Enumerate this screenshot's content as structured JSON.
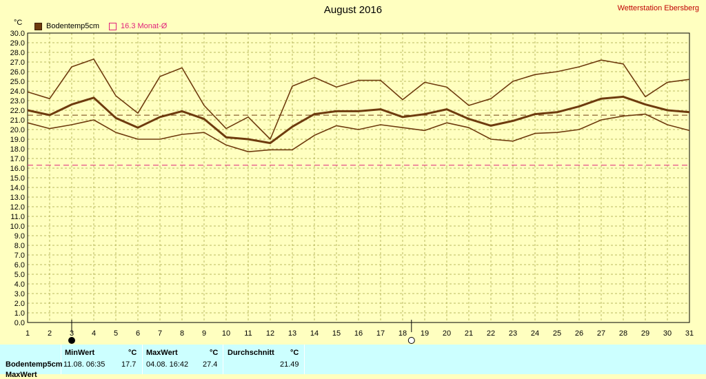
{
  "title": "August 2016",
  "station": "Wetterstation Ebersberg",
  "legend": {
    "series": "Bodentemp5cm",
    "avg": "16.3 Monat-Ø"
  },
  "colors": {
    "series": "#6e3b0e",
    "avg": "#e0207a",
    "grid": "#b8b860",
    "background": "#ffffc0"
  },
  "chart_data": {
    "type": "line",
    "ylabel": "°C",
    "ylim": [
      0,
      30
    ],
    "yticks": [
      "0.0",
      "1.0",
      "2.0",
      "3.0",
      "4.0",
      "5.0",
      "6.0",
      "7.0",
      "8.0",
      "9.0",
      "10.0",
      "11.0",
      "12.0",
      "13.0",
      "14.0",
      "15.0",
      "16.0",
      "17.0",
      "18.0",
      "19.0",
      "20.0",
      "21.0",
      "22.0",
      "23.0",
      "24.0",
      "25.0",
      "26.0",
      "27.0",
      "28.0",
      "29.0",
      "30.0"
    ],
    "x": [
      1,
      2,
      3,
      4,
      5,
      6,
      7,
      8,
      9,
      10,
      11,
      12,
      13,
      14,
      15,
      16,
      17,
      18,
      19,
      20,
      21,
      22,
      23,
      24,
      25,
      26,
      27,
      28,
      29,
      30,
      31
    ],
    "series": [
      {
        "name": "Bodentemp5cm",
        "role": "max",
        "values": [
          23.9,
          23.2,
          26.5,
          27.3,
          23.5,
          21.7,
          25.5,
          26.4,
          22.5,
          20.1,
          21.3,
          19.0,
          24.5,
          25.4,
          24.4,
          25.1,
          25.1,
          23.1,
          24.9,
          24.4,
          22.5,
          23.2,
          25.0,
          25.7,
          26.0,
          26.5,
          27.2,
          26.8,
          23.4,
          24.9,
          25.2
        ]
      },
      {
        "name": "Bodentemp5cm",
        "role": "mean",
        "values": [
          22.0,
          21.5,
          22.6,
          23.3,
          21.2,
          20.2,
          21.3,
          21.9,
          21.1,
          19.2,
          19.0,
          18.6,
          20.3,
          21.6,
          21.9,
          21.9,
          22.1,
          21.3,
          21.6,
          22.1,
          21.1,
          20.4,
          20.9,
          21.6,
          21.8,
          22.4,
          23.2,
          23.4,
          22.6,
          22.0,
          21.8
        ]
      },
      {
        "name": "Bodentemp5cm",
        "role": "min",
        "values": [
          20.7,
          20.1,
          20.5,
          21.0,
          19.7,
          19.0,
          19.0,
          19.5,
          19.7,
          18.4,
          17.7,
          17.9,
          17.9,
          19.4,
          20.4,
          20.0,
          20.5,
          20.2,
          19.9,
          20.7,
          20.2,
          19.0,
          18.8,
          19.6,
          19.7,
          20.0,
          21.0,
          21.4,
          21.6,
          20.5,
          19.9
        ]
      }
    ],
    "reference_lines": [
      {
        "value": 21.49,
        "style": "dashed",
        "color": "#6e3b0e"
      },
      {
        "value": 16.3,
        "style": "dashed",
        "color": "#e0207a"
      }
    ],
    "markers": [
      {
        "day": 3,
        "icon": "new-moon-icon"
      },
      {
        "day": 18.4,
        "icon": "full-moon-icon"
      }
    ],
    "grid": true
  },
  "stats": {
    "headers": {
      "min": "MinWert",
      "max": "MaxWert",
      "avg": "Durchschnitt",
      "unit": "°C"
    },
    "row1": {
      "label": "Bodentemp5cm",
      "min_time": "11.08. 06:35",
      "min_val": "17.7",
      "max_time": "04.08. 16:42",
      "max_val": "27.4",
      "avg_val": "21.49"
    },
    "row2_label": "MaxWert"
  }
}
